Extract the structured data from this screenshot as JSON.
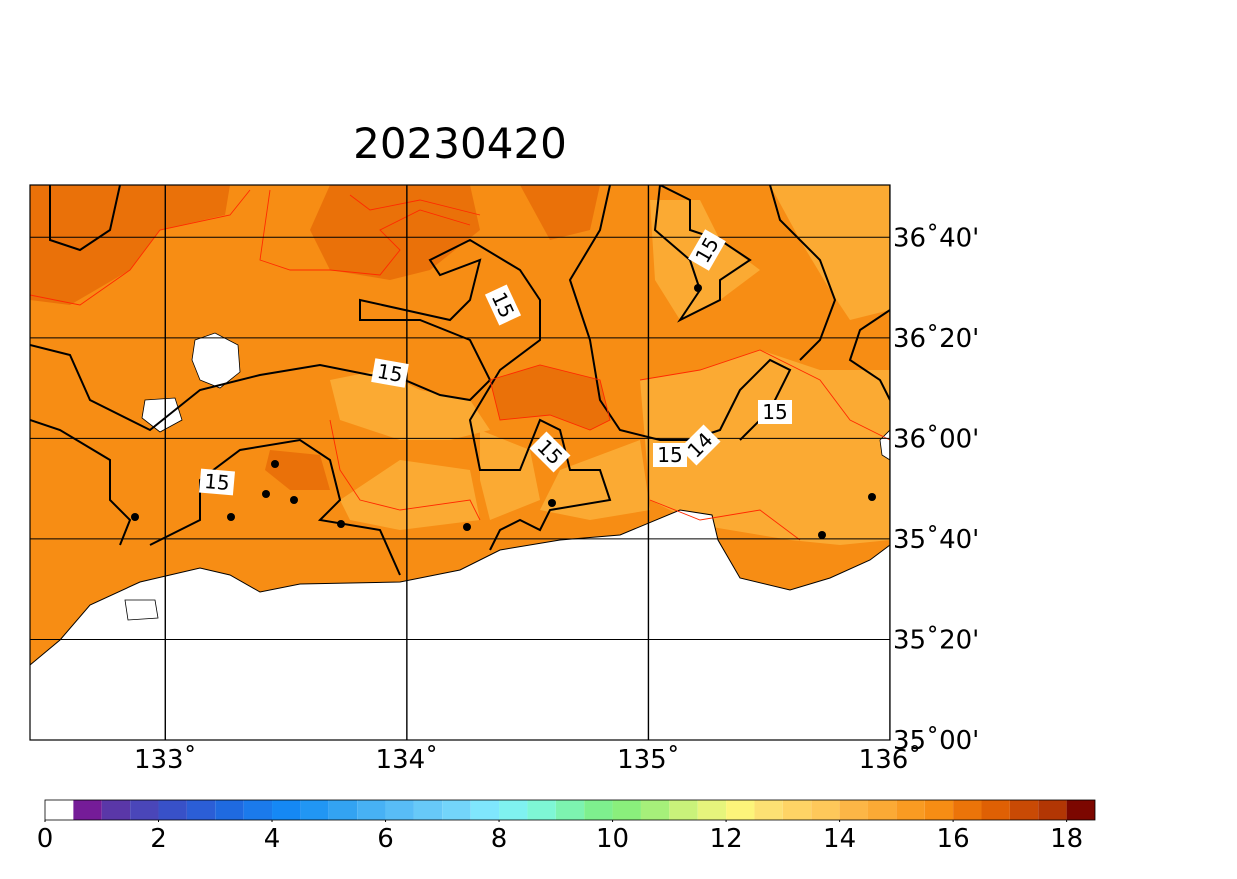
{
  "title": "20230420",
  "map": {
    "lonlim": [
      132.44,
      136
    ],
    "latlim": [
      35,
      36.84
    ],
    "lon_ticks": [
      {
        "value": 133,
        "label": "133˚"
      },
      {
        "value": 134,
        "label": "134˚"
      },
      {
        "value": 135,
        "label": "135˚"
      },
      {
        "value": 136,
        "label": "136˚"
      }
    ],
    "lat_ticks": [
      {
        "value": 35,
        "label": "35˚00'"
      },
      {
        "value": 35.3333,
        "label": "35˚20'"
      },
      {
        "value": 35.6667,
        "label": "35˚40'"
      },
      {
        "value": 36,
        "label": "36˚00'"
      },
      {
        "value": 36.3333,
        "label": "36˚20'"
      },
      {
        "value": 36.6667,
        "label": "36˚40'"
      }
    ],
    "contour_labels": [
      "15",
      "15",
      "15",
      "15",
      "15",
      "15",
      "14",
      "15"
    ]
  },
  "colorbar": {
    "lim": [
      0,
      18.5
    ],
    "ticks": [
      0,
      2,
      4,
      6,
      8,
      10,
      12,
      14,
      16,
      18
    ],
    "colors": [
      "#ffffff",
      "#751c98",
      "#5a37a8",
      "#4a46b9",
      "#3851c8",
      "#2b5ed6",
      "#1f6ae0",
      "#1b7aeb",
      "#1588f5",
      "#2196f3",
      "#33a3f2",
      "#47b1f5",
      "#58bdf7",
      "#67c9f8",
      "#73d5fa",
      "#7fe6fd",
      "#7ff2f0",
      "#7ef7d5",
      "#7df3b0",
      "#7ef08e",
      "#8aef7c",
      "#a6f07a",
      "#c9f27a",
      "#e6f57c",
      "#fdf57a",
      "#fde173",
      "#fed465",
      "#fec85a",
      "#fcb646",
      "#fbaa35",
      "#f99b22",
      "#f78d14",
      "#ec7409",
      "#df6004",
      "#c94a05",
      "#b23604",
      "#7c0700"
    ]
  }
}
